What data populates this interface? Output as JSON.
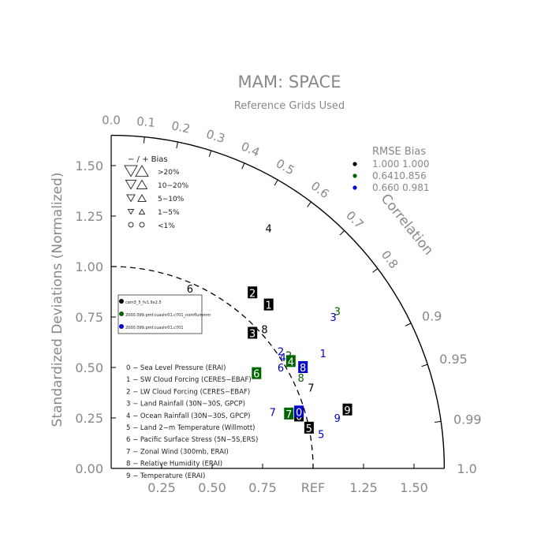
{
  "chart_data": {
    "type": "scatter",
    "title": "MAM: SPACE",
    "subtitle": "Reference Grids Used",
    "ylabel": "Standardized Deviations (Normalized)",
    "arc_label": "Correlation",
    "xlim": [
      0,
      1.65
    ],
    "ylim": [
      0,
      1.65
    ],
    "x_ticks": [
      {
        "v": 0.25,
        "label": "0.25"
      },
      {
        "v": 0.5,
        "label": "0.50"
      },
      {
        "v": 0.75,
        "label": "0.75"
      },
      {
        "v": 1.0,
        "label": "REF"
      },
      {
        "v": 1.25,
        "label": "1.25"
      },
      {
        "v": 1.5,
        "label": "1.50"
      }
    ],
    "y_ticks": [
      {
        "v": 0.0,
        "label": "0.00"
      },
      {
        "v": 0.25,
        "label": "0.25"
      },
      {
        "v": 0.5,
        "label": "0.50"
      },
      {
        "v": 0.75,
        "label": "0.75"
      },
      {
        "v": 1.0,
        "label": "1.00"
      },
      {
        "v": 1.25,
        "label": "1.25"
      },
      {
        "v": 1.5,
        "label": "1.50"
      }
    ],
    "corr_ticks": [
      {
        "r": 0.0,
        "label": "0.0",
        "big": false
      },
      {
        "r": 0.1,
        "label": "0.1",
        "big": false
      },
      {
        "r": 0.2,
        "label": "0.2",
        "big": false
      },
      {
        "r": 0.3,
        "label": "0.3",
        "big": false
      },
      {
        "r": 0.4,
        "label": "0.4",
        "big": false
      },
      {
        "r": 0.5,
        "label": "0.5",
        "big": false
      },
      {
        "r": 0.6,
        "label": "0.6",
        "big": false
      },
      {
        "r": 0.7,
        "label": "0.7",
        "big": false
      },
      {
        "r": 0.8,
        "label": "0.8",
        "big": false
      },
      {
        "r": 0.9,
        "label": "0.9",
        "big": true
      },
      {
        "r": 0.95,
        "label": "0.95",
        "big": true
      },
      {
        "r": 0.99,
        "label": "0.99",
        "big": true
      },
      {
        "r": 1.0,
        "label": "1.0",
        "big": true
      }
    ],
    "bias_legend": {
      "header": "−  /  +     Bias",
      "rows": [
        "  >20%",
        "10−20%",
        "  5−10%",
        "  1−5%",
        "  <1%"
      ]
    },
    "rmse_legend": {
      "header": "RMSE  Bias",
      "rows": [
        {
          "color": "#000000",
          "text": "1.000 1.000"
        },
        {
          "color": "#006400",
          "text": "0.6410.856"
        },
        {
          "color": "#0000cc",
          "text": "0.660 0.981"
        }
      ]
    },
    "case_legend": [
      {
        "color": "#000000",
        "text": "cam3_5_fv1.9x2.5"
      },
      {
        "color": "#006400",
        "text": "2000.099.pmf.cuashr01.c701_nomflummm"
      },
      {
        "color": "#0000cc",
        "text": "2000.099.pmf.cuashr01.c701"
      }
    ],
    "variables": [
      "0 − Sea Level Pressure (ERAI)",
      "1 − SW Cloud Forcing (CERES−EBAF)",
      "2 − LW Cloud Forcing (CERES−EBAF)",
      "3 − Land Rainfall (30N−30S, GPCP)",
      "4 − Ocean Rainfall (30N−30S, GPCP)",
      "5 − Land 2−m Temperature (Willmott)",
      "6 − Pacific Surface Stress (5N−5S,ERS)",
      "7 − Zonal Wind (300mb, ERAI)",
      "8 − Relative Humidity (ERAI)",
      "9 − Temperature (ERAI)"
    ],
    "series": [
      {
        "color": "#000000",
        "points": [
          {
            "label": "0",
            "x": 0.93,
            "y": 0.26,
            "boxed": true
          },
          {
            "label": "1",
            "x": 0.78,
            "y": 0.81,
            "boxed": true
          },
          {
            "label": "2",
            "x": 0.7,
            "y": 0.87,
            "boxed": true
          },
          {
            "label": "3",
            "x": 0.7,
            "y": 0.67,
            "boxed": true
          },
          {
            "label": "4",
            "x": 0.78,
            "y": 1.19,
            "boxed": false
          },
          {
            "label": "5",
            "x": 0.98,
            "y": 0.2,
            "boxed": true
          },
          {
            "label": "6",
            "x": 0.39,
            "y": 0.89,
            "boxed": false
          },
          {
            "label": "7",
            "x": 0.99,
            "y": 0.4,
            "boxed": false
          },
          {
            "label": "8",
            "x": 0.76,
            "y": 0.69,
            "boxed": false
          },
          {
            "label": "9",
            "x": 1.17,
            "y": 0.29,
            "boxed": true
          }
        ]
      },
      {
        "color": "#006400",
        "points": [
          {
            "label": "2",
            "x": 0.88,
            "y": 0.56,
            "boxed": false
          },
          {
            "label": "3",
            "x": 1.12,
            "y": 0.78,
            "boxed": false
          },
          {
            "label": "4",
            "x": 0.89,
            "y": 0.53,
            "boxed": true
          },
          {
            "label": "6",
            "x": 0.72,
            "y": 0.47,
            "boxed": true
          },
          {
            "label": "7",
            "x": 0.88,
            "y": 0.27,
            "boxed": true
          },
          {
            "label": "8",
            "x": 0.94,
            "y": 0.45,
            "boxed": false
          }
        ]
      },
      {
        "color": "#0000cc",
        "points": [
          {
            "label": "0",
            "x": 0.93,
            "y": 0.28,
            "boxed": true
          },
          {
            "label": "1",
            "x": 1.05,
            "y": 0.57,
            "boxed": false
          },
          {
            "label": "2",
            "x": 0.84,
            "y": 0.58,
            "boxed": false
          },
          {
            "label": "3",
            "x": 1.1,
            "y": 0.75,
            "boxed": false
          },
          {
            "label": "4",
            "x": 0.85,
            "y": 0.55,
            "boxed": false
          },
          {
            "label": "5",
            "x": 1.04,
            "y": 0.17,
            "boxed": false
          },
          {
            "label": "6",
            "x": 0.84,
            "y": 0.5,
            "boxed": false
          },
          {
            "label": "7",
            "x": 0.8,
            "y": 0.28,
            "boxed": false
          },
          {
            "label": "8",
            "x": 0.95,
            "y": 0.5,
            "boxed": true
          },
          {
            "label": "9",
            "x": 1.12,
            "y": 0.25,
            "boxed": false
          }
        ]
      }
    ]
  }
}
